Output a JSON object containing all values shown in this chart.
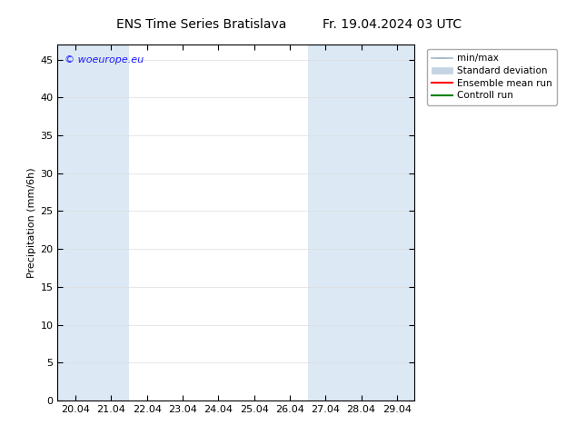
{
  "title_left": "ENS Time Series Bratislava",
  "title_right": "Fr. 19.04.2024 03 UTC",
  "ylabel": "Precipitation (mm/6h)",
  "ylim": [
    0,
    47
  ],
  "yticks": [
    0,
    5,
    10,
    15,
    20,
    25,
    30,
    35,
    40,
    45
  ],
  "xtick_labels": [
    "20.04",
    "21.04",
    "22.04",
    "23.04",
    "24.04",
    "25.04",
    "26.04",
    "27.04",
    "28.04",
    "29.04"
  ],
  "n_days": 10,
  "bg_color": "#ffffff",
  "plot_bg_color": "#ffffff",
  "shaded_color": "#dce9f5",
  "shaded_x": [
    0,
    1,
    7,
    8,
    9
  ],
  "minmax_color": "#a8b8c8",
  "stddev_color": "#c4d4e4",
  "ensemble_mean_color": "#ff0000",
  "control_run_color": "#008000",
  "watermark_text": "© woeurope.eu",
  "watermark_color": "#1a1aff",
  "title_fontsize": 10,
  "axis_label_fontsize": 8,
  "tick_fontsize": 8,
  "legend_fontsize": 7.5
}
